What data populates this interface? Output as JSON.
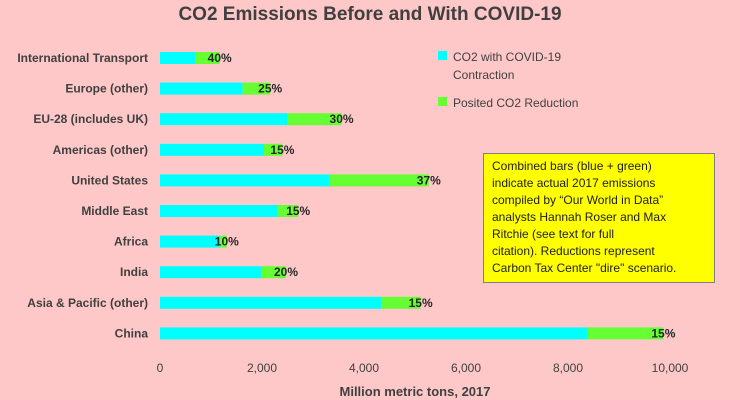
{
  "chart_data": {
    "type": "bar",
    "orientation": "horizontal",
    "stacked": true,
    "title": "CO2 Emissions Before and With COVID-19",
    "xlabel": "Million metric tons, 2017",
    "xlim": [
      0,
      10000
    ],
    "xticks": [
      "0",
      "2,000",
      "4,000",
      "6,000",
      "8,000",
      "10,000"
    ],
    "categories": [
      "International Transport",
      "Europe (other)",
      "EU-28 (includes UK)",
      "Americas (other)",
      "United States",
      "Middle East",
      "Africa",
      "India",
      "Asia & Pacific (other)",
      "China"
    ],
    "series": [
      {
        "name": "CO2 with COVID-19 Contraction",
        "color": "#00ffff",
        "values": [
          700,
          1620,
          2490,
          2040,
          3320,
          2300,
          1180,
          1980,
          4340,
          8390
        ]
      },
      {
        "name": "Posited CO2 Reduction",
        "color": "#66ff33",
        "values": [
          470,
          540,
          1070,
          360,
          1950,
          410,
          130,
          490,
          770,
          1480
        ]
      }
    ],
    "data_labels": [
      "40%",
      "25%",
      "30%",
      "15%",
      "37%",
      "15%",
      "10%",
      "20%",
      "15%",
      "15%"
    ],
    "legend_position": "top-right",
    "grid": false
  },
  "note": {
    "lines": [
      "Combined bars (blue + green)",
      "indicate actual 2017 emissions",
      "compiled by “Our World in Data”",
      "analysts Hannah Roser and Max",
      "Ritchie (see text for full",
      "citation). Reductions represent",
      "Carbon Tax Center \"dire\" scenario."
    ]
  },
  "legend": {
    "item1_label": "CO2 with COVID-19 Contraction",
    "item2_label": "Posited CO2 Reduction"
  }
}
